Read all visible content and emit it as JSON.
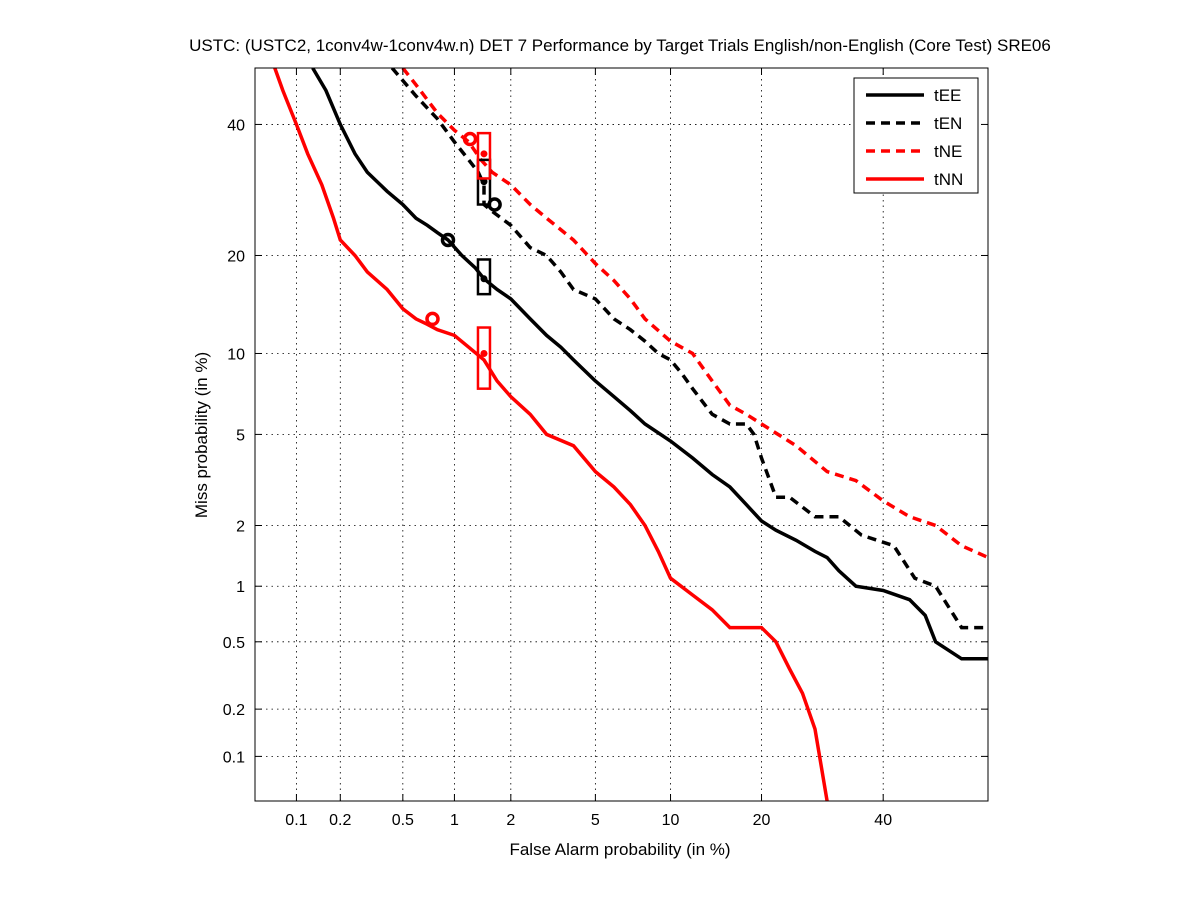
{
  "chart_data": {
    "type": "line",
    "scale": "normal-deviate (DET)",
    "title": "USTC: (USTC2, 1conv4w-1conv4w.n) DET 7 Performance by Target Trials English/non-English (Core Test) SRE06",
    "xlabel": "False Alarm probability (in %)",
    "ylabel": "Miss probability (in %)",
    "xlim": [
      0.05,
      60
    ],
    "ylim": [
      0.05,
      50
    ],
    "x_ticks": [
      0.1,
      0.2,
      0.5,
      1,
      2,
      5,
      10,
      20,
      40
    ],
    "x_tick_labels": [
      "0.1",
      "0.2",
      "0.5",
      "1",
      "2",
      "5",
      "10",
      "20",
      "40"
    ],
    "y_ticks": [
      0.1,
      0.2,
      0.5,
      1,
      2,
      5,
      10,
      20,
      40
    ],
    "y_tick_labels": [
      "0.1",
      "0.2",
      "0.5",
      "1",
      "2",
      "5",
      "10",
      "20",
      "40"
    ],
    "grid": true,
    "legend_position": "top-right",
    "series": [
      {
        "name": "tEE",
        "color": "#000000",
        "dash": "solid",
        "x": [
          0.13,
          0.16,
          0.2,
          0.25,
          0.3,
          0.4,
          0.5,
          0.6,
          0.7,
          0.8,
          0.92,
          1.1,
          1.3,
          1.45,
          1.7,
          2.0,
          2.5,
          3.0,
          3.5,
          4.0,
          5.0,
          6.0,
          7.0,
          8.0,
          10.0,
          12.0,
          14.0,
          16.0,
          18.0,
          20.0,
          22.0,
          25.0,
          28.0,
          30.0,
          32.0,
          35.0,
          40.0,
          45.0,
          48.0,
          50.0,
          55.0,
          60.0
        ],
        "y": [
          50,
          46,
          40,
          35,
          32,
          29,
          27,
          25,
          24,
          23,
          22,
          20,
          18.5,
          17.2,
          16,
          15,
          13,
          11.5,
          10.5,
          9.5,
          8,
          7,
          6.2,
          5.5,
          4.7,
          4,
          3.4,
          3,
          2.5,
          2.1,
          1.9,
          1.7,
          1.5,
          1.4,
          1.2,
          1.0,
          0.95,
          0.85,
          0.7,
          0.5,
          0.4,
          0.4
        ]
      },
      {
        "name": "tEN",
        "color": "#000000",
        "dash": "dashed",
        "x": [
          0.43,
          0.6,
          0.8,
          1.0,
          1.2,
          1.35,
          1.45,
          1.45,
          1.6,
          2.0,
          2.5,
          3.0,
          3.5,
          4.0,
          5.0,
          6.0,
          7.0,
          8.0,
          9.0,
          10.0,
          11.0,
          12.0,
          14.0,
          16.0,
          18.0,
          19.0,
          20.0,
          22.0,
          24.0,
          28.0,
          32.0,
          36.0,
          42.0,
          46.0,
          50.0,
          55.0,
          60.0
        ],
        "y": [
          50,
          45,
          41,
          37,
          34,
          32,
          30,
          27,
          26,
          24,
          21,
          20,
          18,
          16,
          15,
          13,
          12,
          11,
          10,
          9.5,
          8.5,
          7.5,
          6,
          5.5,
          5.5,
          5.0,
          4.0,
          2.7,
          2.7,
          2.2,
          2.2,
          1.8,
          1.6,
          1.1,
          1.0,
          0.6,
          0.6
        ]
      },
      {
        "name": "tNE",
        "color": "#ff0000",
        "dash": "dashed",
        "x": [
          0.5,
          0.6,
          0.8,
          1.0,
          1.2,
          1.4,
          1.6,
          2.0,
          2.5,
          3.0,
          4.0,
          5.0,
          6.0,
          7.0,
          8.0,
          10.0,
          12.0,
          14.0,
          16.0,
          18.0,
          20.0,
          25.0,
          30.0,
          35.0,
          40.0,
          45.0,
          50.0,
          55.0,
          60.0
        ],
        "y": [
          50,
          47,
          42,
          39,
          37,
          34,
          32,
          30,
          27,
          25,
          22,
          19,
          17,
          15,
          13,
          11,
          10,
          8,
          6.5,
          6,
          5.5,
          4.5,
          3.5,
          3.2,
          2.6,
          2.2,
          2.0,
          1.6,
          1.4
        ]
      },
      {
        "name": "tNN",
        "color": "#ff0000",
        "dash": "solid",
        "x": [
          0.07,
          0.08,
          0.1,
          0.12,
          0.15,
          0.18,
          0.2,
          0.25,
          0.3,
          0.4,
          0.5,
          0.6,
          0.7,
          0.8,
          1.0,
          1.2,
          1.45,
          1.7,
          2.0,
          2.5,
          3.0,
          4.0,
          5.0,
          6.0,
          7.0,
          8.0,
          9.0,
          10.0,
          12.0,
          14.0,
          16.0,
          20.0,
          22.0,
          24.0,
          26.0,
          28.0,
          30.0
        ],
        "y": [
          50,
          46,
          40,
          35,
          30,
          25,
          22,
          20,
          18,
          16,
          14,
          13,
          12.5,
          12,
          11.5,
          10.5,
          9.5,
          8,
          7,
          6,
          5,
          4.5,
          3.5,
          3.0,
          2.5,
          2.0,
          1.5,
          1.1,
          0.9,
          0.75,
          0.6,
          0.6,
          0.5,
          0.35,
          0.25,
          0.15,
          0.05
        ]
      }
    ],
    "markers": [
      {
        "series": "tEE",
        "x": 0.92,
        "y": 22,
        "shape": "circle"
      },
      {
        "series": "tEE",
        "x": 1.45,
        "y": 17.2,
        "shape": "box",
        "y_low": 15.5,
        "y_high": 19.5
      },
      {
        "series": "tEN",
        "x": 1.65,
        "y": 27,
        "shape": "circle"
      },
      {
        "series": "tEN",
        "x": 1.45,
        "y": 30.5,
        "shape": "box",
        "y_low": 27,
        "y_high": 34
      },
      {
        "series": "tNE",
        "x": 1.22,
        "y": 37.5,
        "shape": "circle"
      },
      {
        "series": "tNE",
        "x": 1.45,
        "y": 35,
        "shape": "box",
        "y_low": 31,
        "y_high": 38.5
      },
      {
        "series": "tNN",
        "x": 0.75,
        "y": 13,
        "shape": "circle"
      },
      {
        "series": "tNN",
        "x": 1.45,
        "y": 10,
        "shape": "box",
        "y_low": 7.5,
        "y_high": 12.2
      }
    ]
  }
}
